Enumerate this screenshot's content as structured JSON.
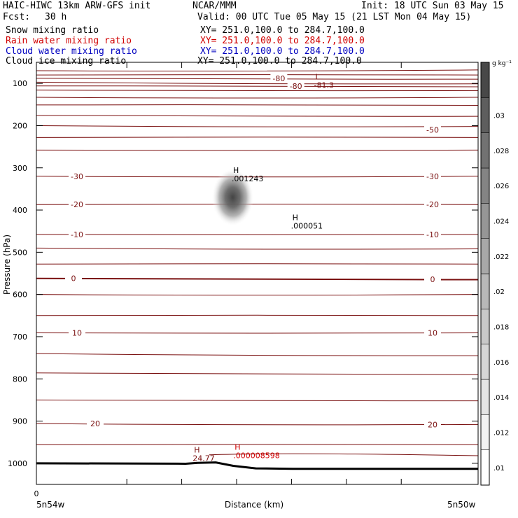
{
  "header": {
    "model": "HAIC-HIWC 13km ARW-GFS init",
    "center": "NCAR/MMM",
    "init": "Init: 18 UTC Sun 03 May 15",
    "fcst_label": "Fcst:",
    "fcst_value": "30 h",
    "valid": "Valid: 00 UTC Tue 05 May 15 (21 LST Mon 04 May 15)"
  },
  "fields": [
    {
      "name": "Snow mixing ratio",
      "xy": "XY= 251.0,100.0 to 284.7,100.0",
      "color": "#000000"
    },
    {
      "name": "Rain water mixing ratio",
      "xy": "XY= 251.0,100.0 to 284.7,100.0",
      "color": "#d00000"
    },
    {
      "name": "Cloud water mixing ratio",
      "xy": "XY= 251.0,100.0 to 284.7,100.0",
      "color": "#0000c0"
    },
    {
      "name": "Cloud ice mixing ratio",
      "xy": "XY= 251.0,100.0 to 284.7,100.0",
      "color": "#000000"
    }
  ],
  "chart_data": {
    "type": "contour cross-section",
    "ylabel": "Pressure (hPa)",
    "xlabel": "Distance (km)",
    "x_tick_labels": [
      "0"
    ],
    "x_endpoint_left": "5n54w",
    "x_endpoint_right": "5n50w",
    "y_ticks": [
      100,
      200,
      300,
      400,
      500,
      600,
      700,
      800,
      900,
      1000
    ],
    "y_range_hpa": [
      50,
      1050
    ],
    "y_axis_note": "pressure increases downward; spacing is linear in hPa",
    "x_range_km": [
      0,
      440
    ],
    "colorbar": {
      "unit": "g kg⁻¹",
      "levels": [
        ".01",
        ".012",
        ".014",
        ".016",
        ".018",
        ".02",
        ".022",
        ".024",
        ".026",
        ".028",
        ".03"
      ],
      "colors": [
        "#ffffff",
        "#f2f2f2",
        "#e4e4e4",
        "#d6d6d6",
        "#c8c8c8",
        "#b8b8b8",
        "#a8a8a8",
        "#969696",
        "#848484",
        "#727272",
        "#5e5e5e",
        "#484848"
      ]
    },
    "temperature_contours": {
      "color": "#7a1010",
      "labels_left": [
        {
          "value": "-30",
          "p": 320
        },
        {
          "value": "-20",
          "p": 387
        },
        {
          "value": "-10",
          "p": 458
        },
        {
          "value": "0",
          "p": 562
        },
        {
          "value": "10",
          "p": 691
        },
        {
          "value": "20",
          "p": 906
        }
      ],
      "labels_right": [
        {
          "value": "-50",
          "p": 210
        },
        {
          "value": "-30",
          "p": 320
        },
        {
          "value": "-20",
          "p": 387
        },
        {
          "value": "-10",
          "p": 458
        },
        {
          "value": "0",
          "p": 564
        },
        {
          "value": "10",
          "p": 691
        },
        {
          "value": "20",
          "p": 908
        }
      ],
      "labels_top": [
        {
          "value": "-80",
          "x_km": 77,
          "p": 88
        },
        {
          "value": "-80",
          "x_km": 108,
          "p": 106
        }
      ]
    },
    "extrema": [
      {
        "type": "L",
        "value": "-81.3",
        "x_km": 141,
        "p": 104,
        "color": "#7a1010"
      },
      {
        "type": "H",
        "value": ".001243",
        "x_km": -9,
        "p": 325,
        "color": "#000000"
      },
      {
        "type": "H",
        "value": ".000051",
        "x_km": 99,
        "p": 437,
        "color": "#000000"
      },
      {
        "type": "H",
        "value": ".000008598",
        "x_km": -6,
        "p": 981,
        "color": "#d00000"
      },
      {
        "type": "H",
        "value": "24.77",
        "x_km": -80,
        "p": 988,
        "color": "#7a1010"
      }
    ],
    "cloud_ice_maximum": {
      "value": 0.03,
      "x_km": -7,
      "p": 370
    },
    "terrain": {
      "description": "surface pressure line",
      "x_km": [
        -93,
        -71,
        -38,
        -6,
        35,
        102
      ],
      "p": [
        1001,
        999,
        998,
        1006,
        1012,
        1013
      ]
    }
  }
}
